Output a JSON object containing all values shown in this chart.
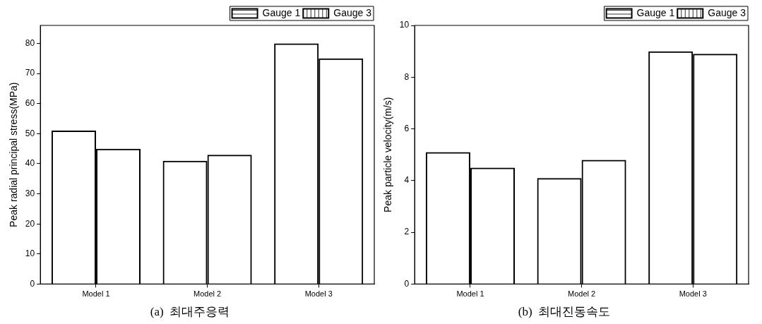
{
  "chart_data": [
    {
      "type": "bar",
      "title": "(a)  최대주응력",
      "ylabel": "Peak radial principal stress(MPa)",
      "categories": [
        "Model 1",
        "Model 2",
        "Model 3"
      ],
      "series": [
        {
          "name": "Gauge 1",
          "color": "#000000",
          "values": [
            51,
            41,
            80
          ]
        },
        {
          "name": "Gauge 3",
          "color": "#000000",
          "values": [
            45,
            43,
            75
          ]
        }
      ],
      "ylim": [
        0,
        86
      ],
      "yticks": [
        0,
        10,
        20,
        30,
        40,
        50,
        60,
        70,
        80
      ],
      "grid": false,
      "legend": "top right"
    },
    {
      "type": "bar",
      "title": "(b)  최대진동속도",
      "ylabel": "Peak particle velocity(m/s)",
      "categories": [
        "Model 1",
        "Model 2",
        "Model 3"
      ],
      "series": [
        {
          "name": "Gauge 1",
          "color": "#000000",
          "values": [
            5.1,
            4.1,
            9.0
          ]
        },
        {
          "name": "Gauge 3",
          "color": "#000000",
          "values": [
            4.5,
            4.8,
            8.9
          ]
        }
      ],
      "ylim": [
        0,
        10
      ],
      "yticks": [
        0,
        2,
        4,
        6,
        8,
        10
      ],
      "grid": false,
      "legend": "top right"
    }
  ]
}
